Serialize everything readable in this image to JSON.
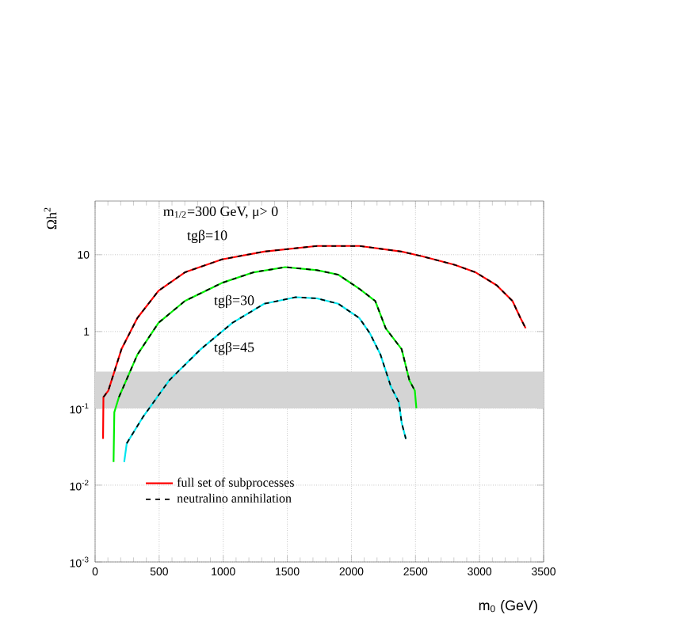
{
  "chart_data": {
    "type": "line",
    "xlabel": "m$_{0}$ (GeV)",
    "ylabel": "Ωh$^{2}$",
    "log": "y",
    "grid": true,
    "legend": "bottom left",
    "line_style": "solid",
    "xlim": [
      0,
      3500
    ],
    "xticks": [
      0,
      500,
      1000,
      1500,
      2000,
      2500,
      3000,
      3500
    ],
    "ylim": [
      0.001,
      50
    ],
    "yticks": [
      {
        "value": 0.001,
        "label": "10$^{-3}$"
      },
      {
        "value": 0.01,
        "label": "10$^{-2}$"
      },
      {
        "value": 0.1,
        "label": "10$^{-1}$"
      },
      1,
      10
    ],
    "bands": [
      {
        "axis": "y",
        "from": 0.1,
        "to": 0.3,
        "color": "#d4d4d4"
      }
    ],
    "annotations": [
      "m$_{1/2}$=300 GeV, μ> 0",
      "tgβ=10",
      "tgβ=30",
      "tgβ=45"
    ],
    "series": [
      {
        "name": "full set of subprocesses",
        "color": "#ff0000",
        "x": [
          62,
          65,
          103,
          206,
          330,
          495,
          701,
          990,
          1320,
          1732,
          2062,
          2392,
          2557,
          2804,
          2969,
          3134,
          3257,
          3319,
          3360
        ],
        "values": [
          0.04,
          0.14,
          0.17,
          0.59,
          1.5,
          3.4,
          5.9,
          8.7,
          11,
          13,
          13,
          11,
          9.5,
          7.4,
          5.9,
          4.0,
          2.5,
          1.5,
          1.1
        ]
      },
      {
        "color": "#00ee00",
        "x": [
          144,
          150,
          186,
          330,
          495,
          701,
          990,
          1237,
          1484,
          1732,
          1897,
          2062,
          2186,
          2268,
          2392,
          2453,
          2495,
          2507
        ],
        "values": [
          0.02,
          0.089,
          0.14,
          0.5,
          1.3,
          2.5,
          4.3,
          5.9,
          6.9,
          6.3,
          5.5,
          3.6,
          2.5,
          1.1,
          0.59,
          0.23,
          0.17,
          0.1
        ]
      },
      {
        "color": "#00e5ee",
        "x": [
          227,
          247,
          371,
          577,
          825,
          1072,
          1320,
          1567,
          1732,
          1897,
          2062,
          2144,
          2227,
          2309,
          2371,
          2392,
          2425
        ],
        "values": [
          0.02,
          0.035,
          0.076,
          0.23,
          0.59,
          1.3,
          2.3,
          2.8,
          2.7,
          2.3,
          1.5,
          0.95,
          0.5,
          0.19,
          0.12,
          0.065,
          0.04
        ]
      },
      {
        "name": "neutralino annihilation",
        "color": "#000000",
        "line_style": "dashed",
        "x": [
          65,
          103,
          206,
          330,
          495,
          701,
          990,
          1320,
          1732,
          2062,
          2392,
          2557,
          2804,
          2969,
          3134,
          3257,
          3319,
          3360
        ],
        "values": [
          0.14,
          0.17,
          0.59,
          1.5,
          3.4,
          5.9,
          8.7,
          11,
          13,
          13,
          11,
          9.5,
          7.4,
          5.9,
          4.0,
          2.5,
          1.5,
          1.1
        ]
      },
      {
        "color": "#000000",
        "line_style": "dashed",
        "x": [
          186,
          330,
          495,
          701,
          990,
          1237,
          1484,
          1732,
          1897,
          2062,
          2186,
          2268,
          2392,
          2453,
          2495
        ],
        "values": [
          0.14,
          0.5,
          1.3,
          2.5,
          4.3,
          5.9,
          6.9,
          6.3,
          5.5,
          3.6,
          2.5,
          1.1,
          0.59,
          0.23,
          0.17
        ]
      },
      {
        "color": "#000000",
        "line_style": "dashed",
        "x": [
          247,
          371,
          577,
          825,
          1072,
          1320,
          1567,
          1732,
          1897,
          2062,
          2144,
          2227,
          2309,
          2371,
          2392,
          2425
        ],
        "values": [
          0.035,
          0.076,
          0.23,
          0.59,
          1.3,
          2.3,
          2.8,
          2.7,
          2.3,
          1.5,
          0.95,
          0.5,
          0.19,
          0.12,
          0.065,
          0.04
        ]
      }
    ]
  }
}
